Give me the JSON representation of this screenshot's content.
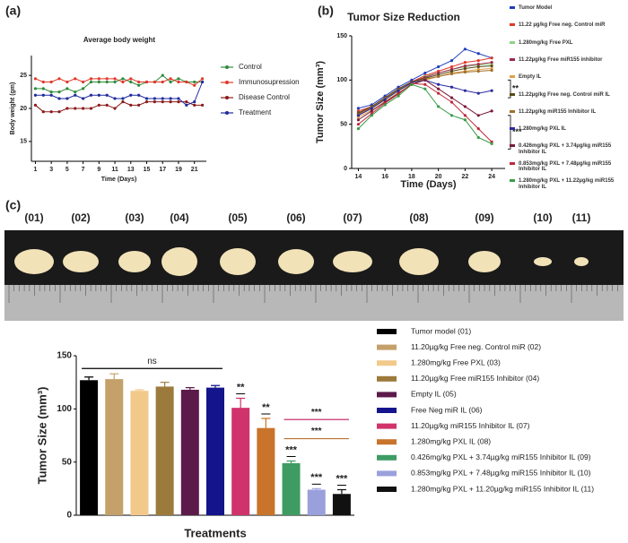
{
  "panels": [
    "(a)",
    "(b)",
    "(c)"
  ],
  "photo_labels": [
    "(01)",
    "(02)",
    "(03)",
    "(04)",
    "(05)",
    "(06)",
    "(07)",
    "(08)",
    "(09)",
    "(10)",
    "(11)"
  ],
  "chart_data": [
    {
      "type": "line",
      "title": "Average body weight",
      "x_label": "Time (Days)",
      "y_label": "Body weight (gm)",
      "x": [
        1,
        2,
        3,
        4,
        5,
        6,
        7,
        8,
        9,
        10,
        11,
        12,
        13,
        14,
        15,
        16,
        17,
        18,
        19,
        20,
        21,
        22
      ],
      "xlim": [
        0.5,
        22.5
      ],
      "xticks": [
        1,
        3,
        5,
        7,
        9,
        11,
        13,
        15,
        17,
        19,
        21
      ],
      "ylim": [
        12,
        28
      ],
      "yticks": [
        15,
        20,
        25
      ],
      "legend": "right",
      "series": [
        {
          "name": "Control",
          "color": "#2e8b3a",
          "values": [
            23,
            23,
            22.5,
            22.5,
            23,
            22.5,
            23,
            24,
            24,
            24,
            24,
            24.5,
            24,
            23.5,
            24,
            24,
            25,
            24,
            24.5,
            24,
            24,
            24
          ]
        },
        {
          "name": "Immunosupression",
          "color": "#e0392b",
          "values": [
            24.5,
            24,
            24,
            24.5,
            24,
            24.5,
            24,
            24.5,
            24.5,
            24.5,
            24.5,
            24,
            24.5,
            24,
            24,
            24,
            24,
            24.5,
            24,
            24,
            23.5,
            24.5
          ]
        },
        {
          "name": "Disease Control",
          "color": "#8b1a1a",
          "values": [
            20.5,
            19.5,
            19.5,
            19.5,
            20,
            20,
            20,
            20,
            20.5,
            20.5,
            20,
            21,
            20.5,
            20.5,
            21,
            21,
            21,
            21,
            21,
            21,
            20.5,
            20.5
          ]
        },
        {
          "name": "Treatment",
          "color": "#1f2a9c",
          "values": [
            22,
            22,
            22,
            21.5,
            21.5,
            22,
            21.5,
            22,
            22,
            22,
            21.5,
            21.5,
            22,
            22,
            21.5,
            21.5,
            21.5,
            21.5,
            21.5,
            20.5,
            21,
            24
          ]
        }
      ]
    },
    {
      "type": "line",
      "title": "Tumor Size Reduction",
      "x_label": "Time (Days)",
      "y_label": "Tumor Size (mm³)",
      "x": [
        14,
        15,
        16,
        17,
        18,
        19,
        20,
        21,
        22,
        23,
        24
      ],
      "xlim": [
        13.5,
        25
      ],
      "xticks": [
        14,
        16,
        18,
        20,
        22,
        24
      ],
      "ylim": [
        0,
        150
      ],
      "yticks": [
        0,
        50,
        100,
        150
      ],
      "legend": "right",
      "annotations": [
        "**",
        "***"
      ],
      "series": [
        {
          "name": "Tumor Model",
          "color": "#1f3fbf",
          "values": [
            68,
            72,
            82,
            92,
            100,
            108,
            115,
            122,
            135,
            130,
            125
          ]
        },
        {
          "name": "11.22 µg/kg Free neg. Control miR",
          "color": "#e0392b",
          "values": [
            65,
            70,
            80,
            90,
            98,
            105,
            110,
            115,
            120,
            122,
            125
          ]
        },
        {
          "name": "1.280mg/kg Free PXL",
          "color": "#8fd18a",
          "values": [
            60,
            68,
            78,
            88,
            96,
            104,
            108,
            112,
            115,
            117,
            118
          ]
        },
        {
          "name": "11.22µg/kg Free miR155 inhibitor",
          "color": "#9c2a4a",
          "values": [
            62,
            70,
            80,
            90,
            98,
            103,
            108,
            112,
            116,
            118,
            120
          ]
        },
        {
          "name": "Empty IL",
          "color": "#e0a04a",
          "values": [
            58,
            66,
            76,
            86,
            95,
            100,
            104,
            108,
            110,
            112,
            113
          ]
        },
        {
          "name": "11.22µg/kg Free neg. Control miR IL",
          "color": "#5a4a1a",
          "values": [
            63,
            70,
            80,
            90,
            98,
            102,
            106,
            110,
            113,
            115,
            116
          ]
        },
        {
          "name": "11.22µg/kg miR155 Inhibitor IL",
          "color": "#a0702a",
          "values": [
            61,
            69,
            79,
            89,
            97,
            101,
            104,
            107,
            109,
            110,
            111
          ]
        },
        {
          "name": "1.280mg/kg PXL IL",
          "color": "#2a2aa0",
          "values": [
            60,
            68,
            78,
            88,
            97,
            100,
            95,
            92,
            88,
            85,
            88
          ]
        },
        {
          "name": "0.426mg/kg PXL + 3.74µg/kg miR155 Inhibitor IL",
          "color": "#7a1a3a",
          "values": [
            55,
            65,
            75,
            85,
            95,
            100,
            90,
            80,
            70,
            60,
            65
          ]
        },
        {
          "name": "0.853mg/kg PXL + 7.48µg/kg miR155 Inhibitor IL",
          "color": "#c0283a",
          "values": [
            50,
            62,
            74,
            84,
            96,
            95,
            85,
            75,
            60,
            45,
            30
          ]
        },
        {
          "name": "1.280mg/kg PXL + 11.22µg/kg miR155 Inhibitor IL",
          "color": "#3a9c4a",
          "values": [
            45,
            60,
            72,
            82,
            95,
            90,
            70,
            60,
            55,
            35,
            28
          ]
        }
      ]
    },
    {
      "type": "bar",
      "x_label": "Treatments",
      "y_label": "Tumor Size (mm³)",
      "categories": [
        "Tumor model (01)",
        "11.20µg/kg Free neg. Control miR (02)",
        "1.280mg/kg Free PXL (03)",
        "11.20µg/kg Free miR155 Inhibitor (04)",
        "Empty IL (05)",
        "Free Neg miR IL (06)",
        "11.20µg/kg miR155 Inhibitor IL (07)",
        "1.280mg/kg PXL IL (08)",
        "0.426mg/kg PXL + 3.74µg/kg miR155 Inhibitor IL (09)",
        "0.853mg/kg PXL + 7.48µg/kg miR155 Inhibitor IL (10)",
        "1.280mg/kg PXL + 11.20µg/kg miR155 Inhibitor IL (11)"
      ],
      "colors": [
        "#000000",
        "#c4a06a",
        "#f3c98b",
        "#9c7a3c",
        "#5c1a4a",
        "#14148c",
        "#d0336b",
        "#c8742a",
        "#3e9c63",
        "#9aa0dc",
        "#111111"
      ],
      "values": [
        127,
        128,
        117,
        121,
        118,
        120,
        101,
        82,
        49,
        24,
        20
      ],
      "errors": [
        3,
        5,
        1,
        4,
        2,
        2,
        9,
        9,
        2,
        1,
        4
      ],
      "value_annotations": [
        null,
        null,
        null,
        null,
        null,
        null,
        "**",
        "**",
        "***",
        "***",
        "***"
      ],
      "annotations": [
        "ns",
        "***",
        "***"
      ],
      "annotation_colors": [
        "#000000",
        "#c2185b",
        "#b5722f"
      ],
      "ylim": [
        0,
        150
      ],
      "yticks": [
        0,
        50,
        100,
        150
      ]
    }
  ]
}
